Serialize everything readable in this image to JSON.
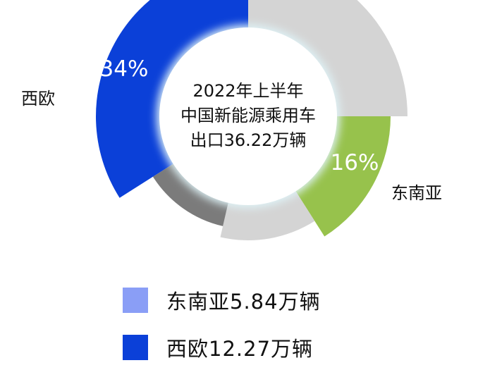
{
  "chart_data": {
    "type": "pie",
    "variant": "donut (variable-radius rose)",
    "center_text": [
      "2022年上半年",
      "中国新能源乘用车",
      "出口36.22万辆"
    ],
    "slices": [
      {
        "label": "",
        "percent_label": "",
        "value": 25,
        "color": "#d4d4d4"
      },
      {
        "label": "东南亚",
        "percent_label": "16%",
        "value": 16,
        "color": "#97c24c"
      },
      {
        "label": "",
        "percent_label": "",
        "value": 12.6,
        "color": "#d4d4d4"
      },
      {
        "label": "",
        "percent_label": "",
        "value": 12.4,
        "color": "#7b7b7b"
      },
      {
        "label": "西欧",
        "percent_label": "34%",
        "value": 34,
        "color": "#0b40d8"
      }
    ],
    "legend": [
      {
        "text": "东南亚5.84万辆",
        "color": "#8a9ef6"
      },
      {
        "text": "西欧12.27万辆",
        "color": "#0b40d8"
      }
    ],
    "legend_placement": "bottom"
  }
}
